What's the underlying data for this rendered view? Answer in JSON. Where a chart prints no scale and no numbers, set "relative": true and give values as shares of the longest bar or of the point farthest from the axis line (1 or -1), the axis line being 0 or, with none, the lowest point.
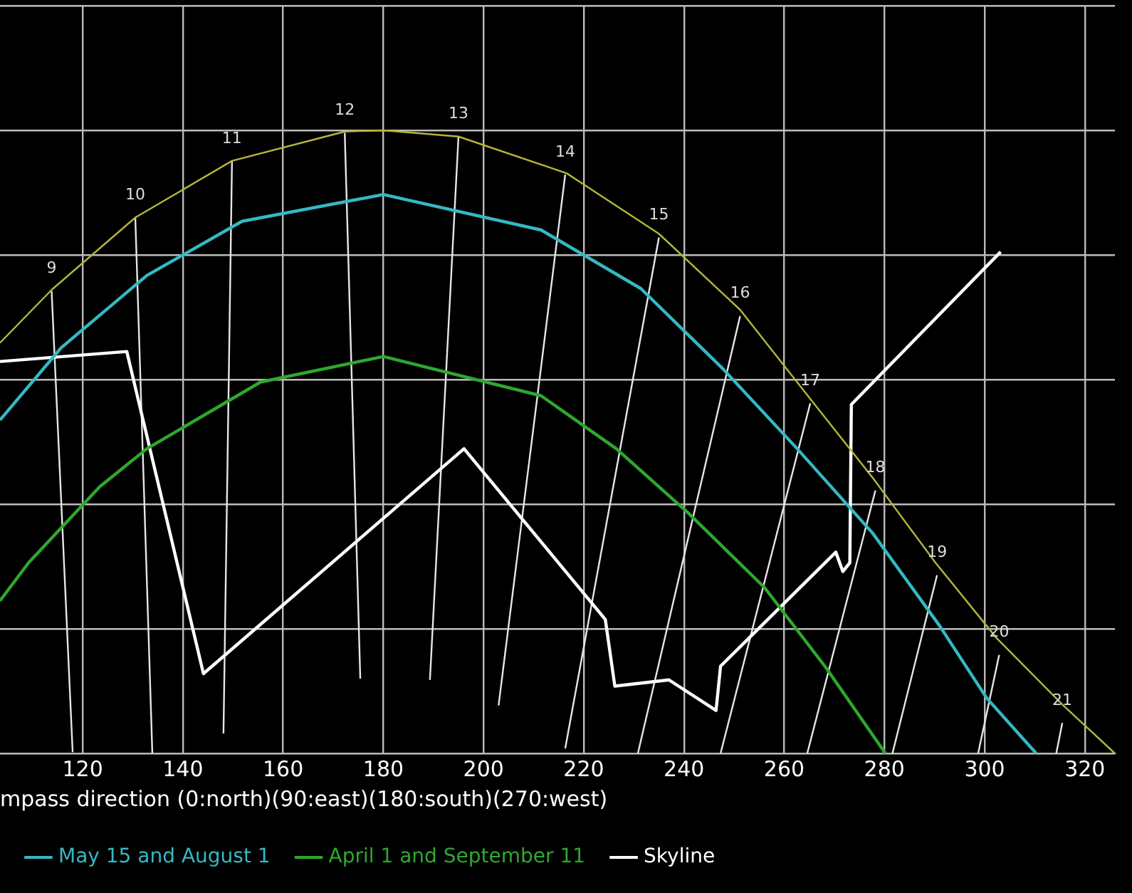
{
  "chart_data": {
    "type": "line",
    "relative": true,
    "xlabel": "mpass direction (0:north)(90:east)(180:south)(270:west)",
    "xlim": [
      103.5,
      326
    ],
    "xticks": [
      120,
      140,
      160,
      180,
      200,
      220,
      240,
      260,
      280,
      300,
      320
    ],
    "grid": true,
    "legend": "bottom",
    "marker": "none",
    "line_style": "solid",
    "series": [
      {
        "color": "#b5b53c",
        "x": [
          103.5,
          113.8,
          130.5,
          149.8,
          172.3,
          180,
          195,
          216.6,
          235,
          251.2,
          265.5,
          277.7,
          290.2,
          302.4,
          315.7,
          326
        ],
        "values": [
          0.659,
          0.744,
          0.86,
          0.951,
          0.998,
          1,
          0.99,
          0.931,
          0.834,
          0.712,
          0.566,
          0.442,
          0.306,
          0.185,
          0.077,
          0
        ]
      },
      {
        "name": "May 15 and August 1",
        "color": "#35b8c4",
        "x": [
          103.5,
          115.7,
          132.8,
          151.8,
          180,
          211.5,
          231.4,
          247.8,
          262.6,
          277.7,
          291,
          300.4,
          310.3
        ],
        "values": [
          0.535,
          0.651,
          0.767,
          0.854,
          0.897,
          0.84,
          0.746,
          0.617,
          0.489,
          0.353,
          0.205,
          0.089,
          0
        ]
      },
      {
        "name": "April 1 and September 11",
        "color": "#2ea82e",
        "x": [
          103.5,
          109.2,
          123.4,
          132.8,
          155.5,
          180,
          211.5,
          226.5,
          240.7,
          256.1,
          268.3,
          280.2
        ],
        "values": [
          0.245,
          0.306,
          0.428,
          0.489,
          0.596,
          0.637,
          0.574,
          0.489,
          0.387,
          0.266,
          0.138,
          0
        ]
      },
      {
        "name": "Skyline",
        "color": "#ffffff",
        "x": [
          103.5,
          128.8,
          144.1,
          196.1,
          224.3,
          226.2,
          237,
          246.4,
          247.3,
          270.3,
          271.7,
          273.1,
          273.4,
          303.2
        ],
        "values": [
          0.629,
          0.645,
          0.128,
          0.489,
          0.215,
          0.108,
          0.118,
          0.069,
          0.14,
          0.323,
          0.292,
          0.306,
          0.56,
          0.805
        ]
      },
      {
        "color": "#e6e6e6",
        "x": [
          113.8,
          118
        ],
        "values": [
          0.742,
          0.002
        ]
      },
      {
        "color": "#e6e6e6",
        "x": [
          130.5,
          133.9
        ],
        "values": [
          0.86,
          0
        ]
      },
      {
        "color": "#e6e6e6",
        "x": [
          149.8,
          148.1
        ],
        "values": [
          0.951,
          0.032
        ]
      },
      {
        "color": "#e6e6e6",
        "x": [
          172.3,
          175.4
        ],
        "values": [
          0.996,
          0.12
        ]
      },
      {
        "color": "#e6e6e6",
        "x": [
          195,
          189.3
        ],
        "values": [
          0.99,
          0.118
        ]
      },
      {
        "color": "#e6e6e6",
        "x": [
          216.3,
          203
        ],
        "values": [
          0.929,
          0.077
        ]
      },
      {
        "color": "#e6e6e6",
        "x": [
          235,
          216.3
        ],
        "values": [
          0.828,
          0.008
        ]
      },
      {
        "color": "#e6e6e6",
        "x": [
          251.2,
          230.8
        ],
        "values": [
          0.702,
          0
        ]
      },
      {
        "color": "#e6e6e6",
        "x": [
          265.2,
          247.3
        ],
        "values": [
          0.562,
          0
        ]
      },
      {
        "color": "#e6e6e6",
        "x": [
          278.2,
          264.6
        ],
        "values": [
          0.422,
          0
        ]
      },
      {
        "color": "#e6e6e6",
        "x": [
          290.5,
          281.6
        ],
        "values": [
          0.286,
          0
        ]
      },
      {
        "color": "#e6e6e6",
        "x": [
          302.9,
          298.7
        ],
        "values": [
          0.158,
          0
        ]
      },
      {
        "color": "#e6e6e6",
        "x": [
          315.5,
          314.3
        ],
        "values": [
          0.049,
          0
        ]
      }
    ],
    "annotations": [
      {
        "text": "9",
        "x": 113.8,
        "y": 0.742
      },
      {
        "text": "10",
        "x": 130.5,
        "y": 0.86
      },
      {
        "text": "11",
        "x": 149.8,
        "y": 0.951
      },
      {
        "text": "12",
        "x": 172.3,
        "y": 0.996
      },
      {
        "text": "13",
        "x": 195,
        "y": 0.99
      },
      {
        "text": "14",
        "x": 216.3,
        "y": 0.929
      },
      {
        "text": "15",
        "x": 235,
        "y": 0.828
      },
      {
        "text": "16",
        "x": 251.2,
        "y": 0.702
      },
      {
        "text": "17",
        "x": 265.2,
        "y": 0.562
      },
      {
        "text": "18",
        "x": 278.2,
        "y": 0.422
      },
      {
        "text": "19",
        "x": 290.5,
        "y": 0.286
      },
      {
        "text": "20",
        "x": 302.9,
        "y": 0.158
      },
      {
        "text": "21",
        "x": 315.5,
        "y": 0.049
      }
    ]
  }
}
